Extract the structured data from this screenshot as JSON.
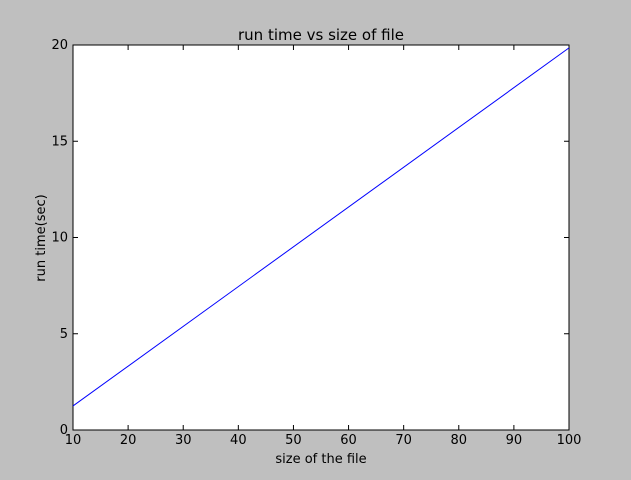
{
  "chart_data": {
    "type": "line",
    "title": "run time vs size of file",
    "xlabel": "size of the file",
    "ylabel": "run time(sec)",
    "xlim": [
      10,
      100
    ],
    "ylim": [
      0,
      20
    ],
    "xticks": [
      10,
      20,
      30,
      40,
      50,
      60,
      70,
      80,
      90,
      100
    ],
    "yticks": [
      0,
      5,
      10,
      15,
      20
    ],
    "grid": false,
    "legend": "none",
    "series": [
      {
        "color": "#0000ff",
        "x": [
          10,
          100
        ],
        "y": [
          1.25,
          19.85
        ]
      }
    ]
  }
}
